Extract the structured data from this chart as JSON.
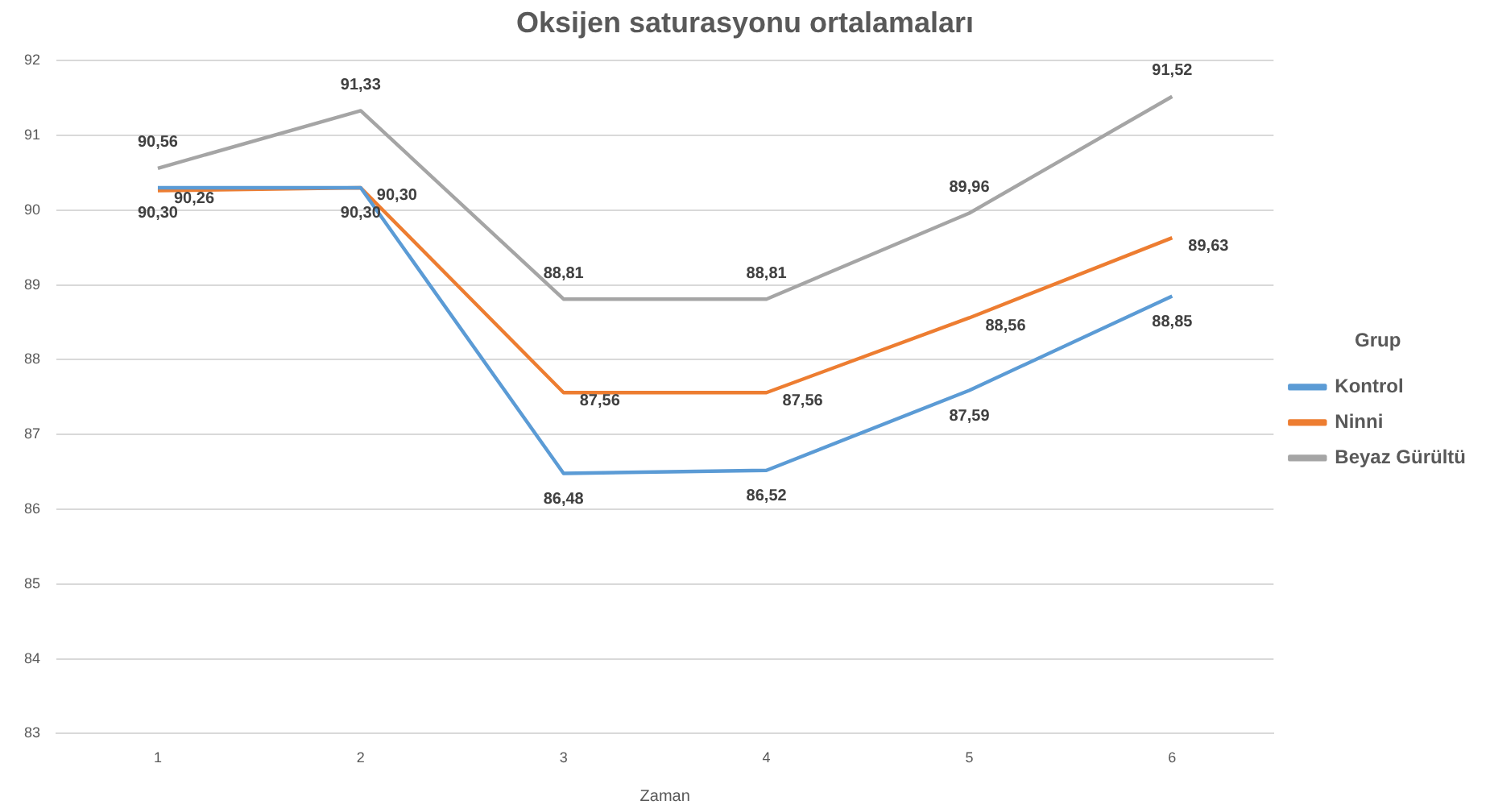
{
  "chart_data": {
    "type": "line",
    "title": "Oksijen saturasyonu ortalamaları",
    "xlabel": "Zaman",
    "legend_title": "Grup",
    "categories": [
      "1",
      "2",
      "3",
      "4",
      "5",
      "6"
    ],
    "series": [
      {
        "name": "Kontrol",
        "color": "#5b9bd5",
        "values": [
          90.3,
          90.3,
          86.48,
          86.52,
          87.59,
          88.85
        ],
        "value_labels": [
          "90,30",
          "90,30",
          "86,48",
          "86,52",
          "87,59",
          "88,85"
        ]
      },
      {
        "name": "Ninni",
        "color": "#ed7d31",
        "values": [
          90.26,
          90.3,
          87.56,
          87.56,
          88.56,
          89.63
        ],
        "value_labels": [
          "90,26",
          "90,30",
          "87,56",
          "87,56",
          "88,56",
          "89,63"
        ]
      },
      {
        "name": "Beyaz Gürültü",
        "color": "#a5a5a5",
        "values": [
          90.56,
          91.33,
          88.81,
          88.81,
          89.96,
          91.52
        ],
        "value_labels": [
          "90,56",
          "91,33",
          "88,81",
          "88,81",
          "89,96",
          "91,52"
        ]
      }
    ],
    "ylim": [
      83,
      92
    ],
    "yticks": [
      83,
      84,
      85,
      86,
      87,
      88,
      89,
      90,
      91,
      92
    ],
    "grid": "y",
    "legend": "right",
    "marker": "none",
    "line_style": "solid"
  }
}
